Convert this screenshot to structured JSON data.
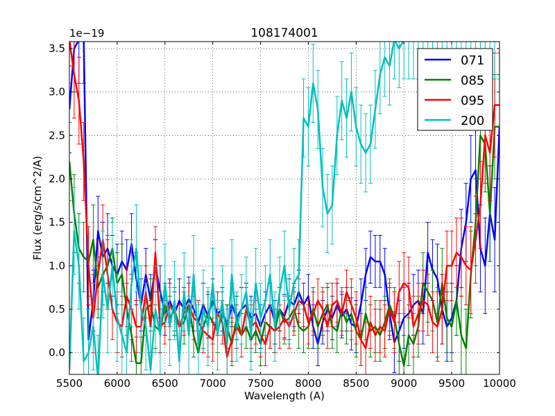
{
  "chart_data": {
    "type": "line",
    "title": "108174001",
    "xlabel": "Wavelength (A)",
    "ylabel": "Flux (erg/s/cm^2/A)",
    "offset_text": "1e−19",
    "xlim": [
      5500,
      10000
    ],
    "ylim": [
      -0.25,
      3.58
    ],
    "grid": true,
    "legend_position": "top-right",
    "xticks": [
      5500,
      6000,
      6500,
      7000,
      7500,
      8000,
      8500,
      9000,
      9500,
      10000
    ],
    "xtick_labels": [
      "5500",
      "6000",
      "6500",
      "7000",
      "7500",
      "8000",
      "8500",
      "9000",
      "9500",
      "10000"
    ],
    "yticks": [
      0.0,
      0.5,
      1.0,
      1.5,
      2.0,
      2.5,
      3.0,
      3.5
    ],
    "ytick_labels": [
      "0.0",
      "0.5",
      "1.0",
      "1.5",
      "2.0",
      "2.5",
      "3.0",
      "3.5"
    ],
    "series": [
      {
        "name": "071",
        "color": "#0000ff",
        "x": [
          5500,
          5550,
          5600,
          5650,
          5700,
          5750,
          5800,
          5850,
          5900,
          5950,
          6000,
          6050,
          6100,
          6150,
          6200,
          6250,
          6300,
          6350,
          6400,
          6450,
          6500,
          6550,
          6600,
          6650,
          6700,
          6750,
          6800,
          6850,
          6900,
          6950,
          7000,
          7050,
          7100,
          7150,
          7200,
          7250,
          7300,
          7350,
          7400,
          7450,
          7500,
          7550,
          7600,
          7650,
          7700,
          7750,
          7800,
          7850,
          7900,
          7950,
          8000,
          8050,
          8100,
          8150,
          8200,
          8250,
          8300,
          8350,
          8400,
          8450,
          8500,
          8550,
          8600,
          8650,
          8700,
          8750,
          8800,
          8850,
          8900,
          8950,
          9000,
          9050,
          9100,
          9150,
          9200,
          9250,
          9300,
          9350,
          9400,
          9450,
          9500,
          9550,
          9600,
          9650,
          9700,
          9750,
          9800,
          9850,
          9900,
          9950,
          10000
        ],
        "y": [
          2.8,
          3.5,
          3.6,
          3.6,
          0.15,
          0.6,
          1.4,
          1.1,
          1.2,
          1.0,
          0.9,
          1.05,
          0.95,
          1.25,
          0.85,
          0.55,
          0.9,
          0.6,
          1.0,
          0.7,
          0.45,
          0.6,
          0.45,
          0.6,
          0.5,
          0.62,
          0.5,
          0.35,
          0.55,
          0.42,
          0.6,
          0.45,
          0.5,
          0.3,
          0.55,
          0.4,
          0.5,
          0.55,
          0.4,
          0.45,
          0.3,
          0.45,
          0.55,
          0.35,
          0.5,
          0.42,
          0.6,
          0.55,
          0.7,
          0.55,
          0.65,
          0.3,
          0.1,
          0.35,
          0.5,
          0.4,
          0.55,
          0.42,
          0.5,
          0.33,
          0.3,
          0.55,
          0.9,
          1.1,
          1.05,
          1.05,
          0.9,
          0.45,
          0.12,
          0.25,
          0.4,
          0.45,
          0.55,
          0.6,
          0.45,
          1.15,
          0.95,
          0.85,
          0.5,
          0.3,
          0.4,
          0.6,
          1.2,
          1.5,
          2.0,
          2.1,
          1.2,
          1.0,
          1.6,
          1.3,
          2.6
        ],
        "err": [
          0.5,
          0.5,
          0.5,
          0.5,
          0.4,
          0.35,
          0.4,
          0.4,
          0.4,
          0.35,
          0.35,
          0.35,
          0.35,
          0.35,
          0.3,
          0.3,
          0.3,
          0.3,
          0.3,
          0.3,
          0.25,
          0.25,
          0.25,
          0.25,
          0.25,
          0.25,
          0.25,
          0.25,
          0.25,
          0.25,
          0.25,
          0.25,
          0.25,
          0.25,
          0.25,
          0.25,
          0.25,
          0.25,
          0.25,
          0.25,
          0.25,
          0.25,
          0.25,
          0.25,
          0.25,
          0.25,
          0.25,
          0.25,
          0.25,
          0.25,
          0.25,
          0.25,
          0.25,
          0.25,
          0.25,
          0.25,
          0.25,
          0.25,
          0.25,
          0.3,
          0.3,
          0.3,
          0.3,
          0.3,
          0.3,
          0.3,
          0.3,
          0.3,
          0.35,
          0.35,
          0.35,
          0.35,
          0.35,
          0.35,
          0.35,
          0.35,
          0.35,
          0.4,
          0.4,
          0.4,
          0.4,
          0.4,
          0.45,
          0.45,
          0.5,
          0.5,
          0.5,
          0.55,
          0.55,
          0.6,
          0.6
        ]
      },
      {
        "name": "085",
        "color": "#008000",
        "x": [
          5500,
          5550,
          5600,
          5650,
          5700,
          5750,
          5800,
          5850,
          5900,
          5950,
          6000,
          6050,
          6100,
          6150,
          6200,
          6250,
          6300,
          6350,
          6400,
          6450,
          6500,
          6550,
          6600,
          6650,
          6700,
          6750,
          6800,
          6850,
          6900,
          6950,
          7000,
          7050,
          7100,
          7150,
          7200,
          7250,
          7300,
          7350,
          7400,
          7450,
          7500,
          7550,
          7600,
          7650,
          7700,
          7750,
          7800,
          7850,
          7900,
          7950,
          8000,
          8050,
          8100,
          8150,
          8200,
          8250,
          8300,
          8350,
          8400,
          8450,
          8500,
          8550,
          8600,
          8650,
          8700,
          8750,
          8800,
          8850,
          8900,
          8950,
          9000,
          9050,
          9100,
          9150,
          9200,
          9250,
          9300,
          9350,
          9400,
          9450,
          9500,
          9550,
          9600,
          9650,
          9700,
          9750,
          9800,
          9850,
          9900,
          9950,
          10000
        ],
        "y": [
          2.2,
          1.6,
          1.2,
          1.1,
          1.05,
          1.3,
          0.75,
          0.9,
          1.0,
          1.2,
          0.8,
          0.9,
          0.5,
          0.2,
          -0.12,
          -0.12,
          0.5,
          0.55,
          0.3,
          0.25,
          0.55,
          0.4,
          0.5,
          0.3,
          0.35,
          0.55,
          0.2,
          0.0,
          0.3,
          0.45,
          0.35,
          0.25,
          0.45,
          0.3,
          0.1,
          0.4,
          0.2,
          0.3,
          0.15,
          0.25,
          0.1,
          0.35,
          0.3,
          0.25,
          0.5,
          0.35,
          0.4,
          0.5,
          0.3,
          0.25,
          0.3,
          0.5,
          0.3,
          0.45,
          0.55,
          0.3,
          0.25,
          0.5,
          0.35,
          0.45,
          0.25,
          0.15,
          0.45,
          0.25,
          0.3,
          0.2,
          0.35,
          0.55,
          0.4,
          0.1,
          -0.15,
          0.2,
          0.1,
          0.3,
          0.8,
          0.7,
          0.6,
          0.35,
          0.8,
          0.4,
          0.3,
          0.6,
          0.2,
          0.05,
          0.9,
          1.5,
          2.5,
          2.4,
          1.6,
          2.6,
          2.6
        ],
        "err": [
          0.45,
          0.45,
          0.4,
          0.4,
          0.4,
          0.4,
          0.35,
          0.35,
          0.35,
          0.35,
          0.35,
          0.35,
          0.3,
          0.3,
          0.3,
          0.3,
          0.3,
          0.3,
          0.25,
          0.25,
          0.25,
          0.25,
          0.25,
          0.25,
          0.25,
          0.25,
          0.25,
          0.25,
          0.25,
          0.25,
          0.25,
          0.25,
          0.25,
          0.25,
          0.25,
          0.25,
          0.25,
          0.25,
          0.25,
          0.25,
          0.25,
          0.25,
          0.25,
          0.25,
          0.25,
          0.25,
          0.25,
          0.25,
          0.25,
          0.25,
          0.25,
          0.25,
          0.25,
          0.25,
          0.25,
          0.25,
          0.25,
          0.25,
          0.25,
          0.3,
          0.3,
          0.3,
          0.3,
          0.3,
          0.3,
          0.3,
          0.3,
          0.3,
          0.35,
          0.35,
          0.35,
          0.35,
          0.35,
          0.35,
          0.35,
          0.35,
          0.35,
          0.4,
          0.4,
          0.4,
          0.4,
          0.4,
          0.45,
          0.45,
          0.5,
          0.5,
          0.5,
          0.55,
          0.55,
          0.6,
          0.6
        ]
      },
      {
        "name": "095",
        "color": "#ff0000",
        "x": [
          5500,
          5550,
          5600,
          5650,
          5700,
          5750,
          5800,
          5850,
          5900,
          5950,
          6000,
          6050,
          6100,
          6150,
          6200,
          6250,
          6300,
          6350,
          6400,
          6450,
          6500,
          6550,
          6600,
          6650,
          6700,
          6750,
          6800,
          6850,
          6900,
          6950,
          7000,
          7050,
          7100,
          7150,
          7200,
          7250,
          7300,
          7350,
          7400,
          7450,
          7500,
          7550,
          7600,
          7650,
          7700,
          7750,
          7800,
          7850,
          7900,
          7950,
          8000,
          8050,
          8100,
          8150,
          8200,
          8250,
          8300,
          8350,
          8400,
          8450,
          8500,
          8550,
          8600,
          8650,
          8700,
          8750,
          8800,
          8850,
          8900,
          8950,
          9000,
          9050,
          9100,
          9150,
          9200,
          9250,
          9300,
          9350,
          9400,
          9450,
          9500,
          9550,
          9600,
          9650,
          9700,
          9750,
          9800,
          9850,
          9900,
          9950,
          10000
        ],
        "y": [
          3.6,
          3.2,
          2.9,
          2.2,
          1.0,
          0.4,
          0.9,
          1.3,
          0.9,
          0.5,
          0.35,
          0.3,
          0.65,
          0.5,
          0.3,
          0.3,
          0.7,
          0.3,
          1.15,
          0.3,
          0.35,
          0.55,
          0.45,
          0.3,
          0.45,
          0.55,
          0.4,
          0.35,
          0.25,
          0.2,
          0.15,
          0.45,
          0.35,
          -0.05,
          0.15,
          0.3,
          0.2,
          0.5,
          0.3,
          0.35,
          0.2,
          0.1,
          0.3,
          0.25,
          0.3,
          0.4,
          0.3,
          0.45,
          0.6,
          0.55,
          0.35,
          0.45,
          0.6,
          0.5,
          0.3,
          0.55,
          0.6,
          0.45,
          0.7,
          0.55,
          0.4,
          0.15,
          0.05,
          0.35,
          0.2,
          0.3,
          0.25,
          0.5,
          0.35,
          0.7,
          0.8,
          0.75,
          0.3,
          0.45,
          0.6,
          0.55,
          0.35,
          0.3,
          0.5,
          1.0,
          1.0,
          1.15,
          1.1,
          1.0,
          0.95,
          1.3,
          1.7,
          2.5,
          2.3,
          2.85,
          2.85
        ],
        "err": [
          0.5,
          0.5,
          0.5,
          0.45,
          0.45,
          0.4,
          0.4,
          0.4,
          0.4,
          0.35,
          0.35,
          0.35,
          0.35,
          0.35,
          0.3,
          0.3,
          0.3,
          0.3,
          0.3,
          0.3,
          0.25,
          0.25,
          0.25,
          0.25,
          0.25,
          0.25,
          0.25,
          0.25,
          0.25,
          0.25,
          0.25,
          0.25,
          0.25,
          0.25,
          0.25,
          0.25,
          0.25,
          0.25,
          0.25,
          0.25,
          0.25,
          0.25,
          0.25,
          0.25,
          0.25,
          0.25,
          0.25,
          0.25,
          0.25,
          0.25,
          0.25,
          0.25,
          0.25,
          0.25,
          0.25,
          0.25,
          0.25,
          0.25,
          0.25,
          0.3,
          0.3,
          0.3,
          0.3,
          0.3,
          0.3,
          0.3,
          0.3,
          0.3,
          0.35,
          0.35,
          0.35,
          0.35,
          0.35,
          0.35,
          0.35,
          0.35,
          0.35,
          0.4,
          0.4,
          0.4,
          0.4,
          0.4,
          0.45,
          0.45,
          0.5,
          0.5,
          0.5,
          0.55,
          0.55,
          0.6,
          0.6
        ]
      },
      {
        "name": "200",
        "color": "#00bfbf",
        "x": [
          5500,
          5550,
          5600,
          5650,
          5700,
          5750,
          5800,
          5850,
          5900,
          5950,
          6000,
          6050,
          6100,
          6150,
          6200,
          6250,
          6300,
          6350,
          6400,
          6450,
          6500,
          6550,
          6600,
          6650,
          6700,
          6750,
          6800,
          6850,
          6900,
          6950,
          7000,
          7050,
          7100,
          7150,
          7200,
          7250,
          7300,
          7350,
          7400,
          7450,
          7500,
          7550,
          7600,
          7650,
          7700,
          7750,
          7800,
          7850,
          7900,
          7950,
          8000,
          8050,
          8100,
          8150,
          8200,
          8250,
          8300,
          8350,
          8400,
          8450,
          8500,
          8550,
          8600,
          8650,
          8700,
          8750,
          8800,
          8850,
          8900,
          8950,
          9000,
          9050,
          9100,
          9150,
          9200,
          9250,
          9300,
          9350,
          9400,
          9450,
          9500,
          9550,
          9600,
          9650,
          9700,
          9750,
          9800,
          9850,
          9900,
          9950,
          10000
        ],
        "y": [
          -0.2,
          1.4,
          1.0,
          -0.1,
          0.0,
          0.3,
          -0.3,
          0.9,
          0.5,
          1.0,
          0.4,
          0.2,
          0.0,
          0.8,
          1.2,
          0.5,
          0.3,
          -0.2,
          0.5,
          0.2,
          0.8,
          0.3,
          0.6,
          -0.1,
          0.7,
          0.2,
          0.9,
          0.1,
          0.5,
          0.3,
          0.8,
          0.2,
          0.6,
          0.1,
          0.9,
          0.3,
          0.5,
          0.7,
          0.2,
          0.8,
          0.4,
          0.6,
          0.9,
          0.3,
          0.7,
          1.0,
          0.5,
          0.8,
          0.9,
          2.7,
          2.6,
          3.1,
          2.8,
          1.9,
          1.6,
          1.7,
          2.5,
          2.9,
          2.7,
          3.0,
          2.6,
          2.4,
          2.3,
          2.4,
          2.8,
          3.2,
          3.4,
          3.3,
          3.6,
          3.5,
          3.6,
          3.6,
          3.6,
          3.6,
          3.6,
          3.6,
          3.6,
          3.6,
          3.6,
          3.6,
          3.6,
          3.6,
          3.6,
          3.6,
          3.6,
          3.6,
          3.6,
          3.6,
          3.6,
          3.6,
          3.6
        ],
        "err": [
          0.5,
          0.5,
          0.5,
          0.5,
          0.5,
          0.5,
          0.5,
          0.5,
          0.5,
          0.5,
          0.5,
          0.5,
          0.5,
          0.5,
          0.5,
          0.5,
          0.5,
          0.5,
          0.5,
          0.5,
          0.45,
          0.45,
          0.45,
          0.45,
          0.45,
          0.45,
          0.45,
          0.45,
          0.45,
          0.45,
          0.4,
          0.4,
          0.4,
          0.4,
          0.4,
          0.4,
          0.4,
          0.4,
          0.4,
          0.4,
          0.4,
          0.4,
          0.4,
          0.4,
          0.4,
          0.4,
          0.4,
          0.4,
          0.4,
          0.45,
          0.45,
          0.45,
          0.45,
          0.45,
          0.45,
          0.45,
          0.45,
          0.45,
          0.45,
          0.45,
          0.45,
          0.45,
          0.45,
          0.45,
          0.45,
          0.45,
          0.45,
          0.45,
          0.45,
          0.45,
          0.45,
          0.45,
          0.45,
          0.45,
          0.45,
          0.45,
          0.45,
          0.45,
          0.45,
          0.45,
          0.45,
          0.45,
          0.45,
          0.45,
          0.45,
          0.45,
          0.45,
          0.45,
          0.45,
          0.45,
          0.45
        ]
      }
    ]
  }
}
